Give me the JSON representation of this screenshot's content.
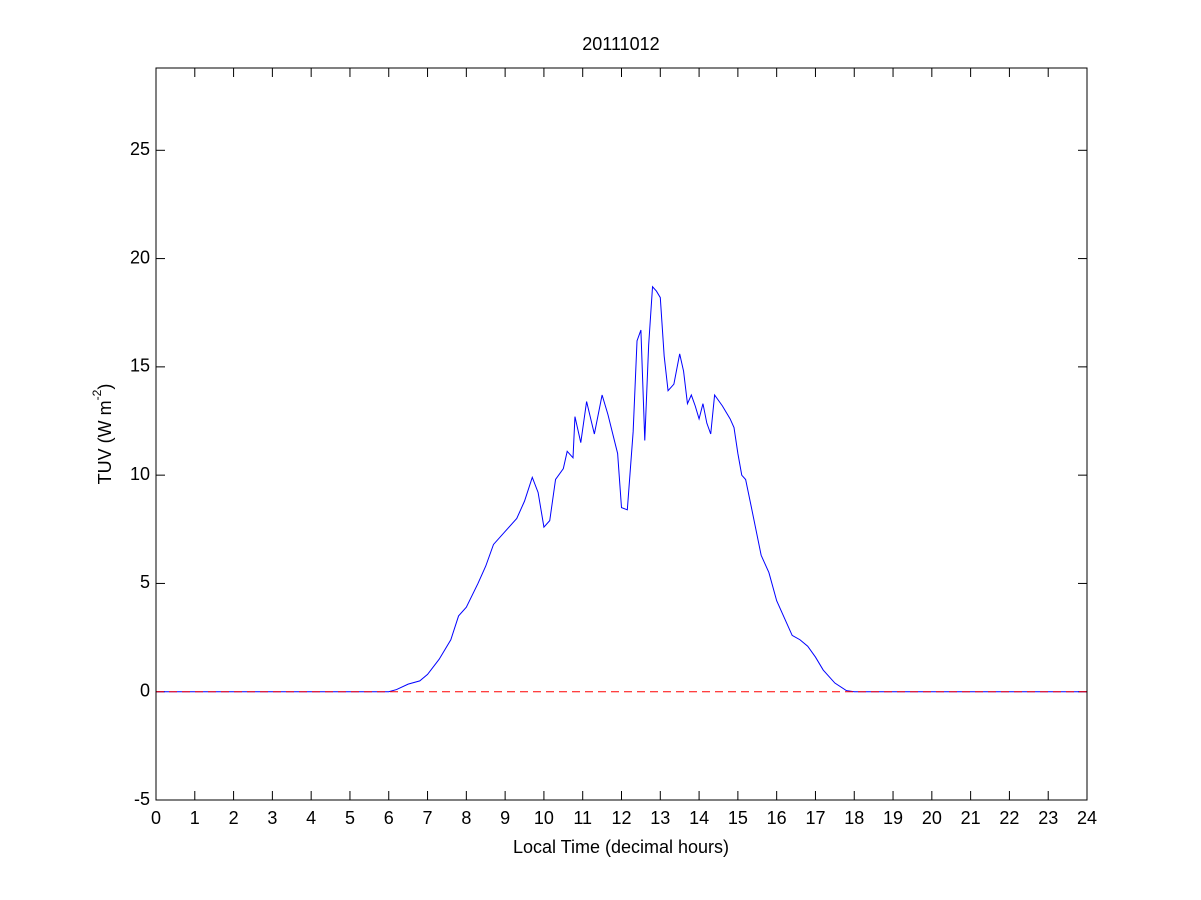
{
  "chart_data": {
    "type": "line",
    "title": "20111012",
    "xlabel": "Local Time (decimal hours)",
    "ylabel": [
      "TUV (W m",
      "-2",
      ")"
    ],
    "x": [
      0,
      6.0,
      6.2,
      6.5,
      6.8,
      7.0,
      7.3,
      7.6,
      7.8,
      8.0,
      8.3,
      8.5,
      8.7,
      9.0,
      9.3,
      9.5,
      9.7,
      9.85,
      10.0,
      10.15,
      10.3,
      10.5,
      10.6,
      10.75,
      10.8,
      10.95,
      11.1,
      11.3,
      11.5,
      11.65,
      11.9,
      12.0,
      12.15,
      12.3,
      12.4,
      12.5,
      12.6,
      12.7,
      12.8,
      12.9,
      13.0,
      13.1,
      13.2,
      13.35,
      13.5,
      13.6,
      13.7,
      13.8,
      13.9,
      14.0,
      14.1,
      14.2,
      14.3,
      14.4,
      14.6,
      14.8,
      14.9,
      15.0,
      15.1,
      15.2,
      15.35,
      15.6,
      15.8,
      16.0,
      16.2,
      16.4,
      16.6,
      16.8,
      17.0,
      17.2,
      17.5,
      17.8,
      18.0,
      24
    ],
    "series": [
      {
        "name": "TUV",
        "color": "#0000ff",
        "values": [
          0,
          0,
          0.1,
          0.35,
          0.5,
          0.8,
          1.5,
          2.4,
          3.5,
          3.9,
          5.0,
          5.8,
          6.8,
          7.4,
          8.0,
          8.8,
          9.9,
          9.2,
          7.6,
          7.9,
          9.8,
          10.3,
          11.1,
          10.8,
          12.7,
          11.5,
          13.4,
          11.9,
          13.7,
          12.8,
          11.0,
          8.5,
          8.4,
          12.0,
          16.2,
          16.7,
          11.6,
          16.0,
          18.7,
          18.5,
          18.2,
          15.5,
          13.9,
          14.2,
          15.6,
          14.8,
          13.3,
          13.7,
          13.2,
          12.6,
          13.3,
          12.4,
          11.9,
          13.7,
          13.2,
          12.6,
          12.2,
          11.0,
          10.0,
          9.8,
          8.5,
          6.3,
          5.5,
          4.2,
          3.4,
          2.6,
          2.4,
          2.1,
          1.6,
          1.0,
          0.4,
          0.05,
          0,
          0
        ]
      }
    ],
    "reference_line": {
      "value": 0,
      "color": "#ff0000",
      "style": "dashed"
    },
    "xlim": [
      0,
      24
    ],
    "xticks": [
      0,
      1,
      2,
      3,
      4,
      5,
      6,
      7,
      8,
      9,
      10,
      11,
      12,
      13,
      14,
      15,
      16,
      17,
      18,
      19,
      20,
      21,
      22,
      23,
      24
    ],
    "ylim": [
      -5,
      28.8
    ],
    "yticks": [
      -5,
      0,
      5,
      10,
      15,
      20,
      25
    ],
    "grid": false
  }
}
